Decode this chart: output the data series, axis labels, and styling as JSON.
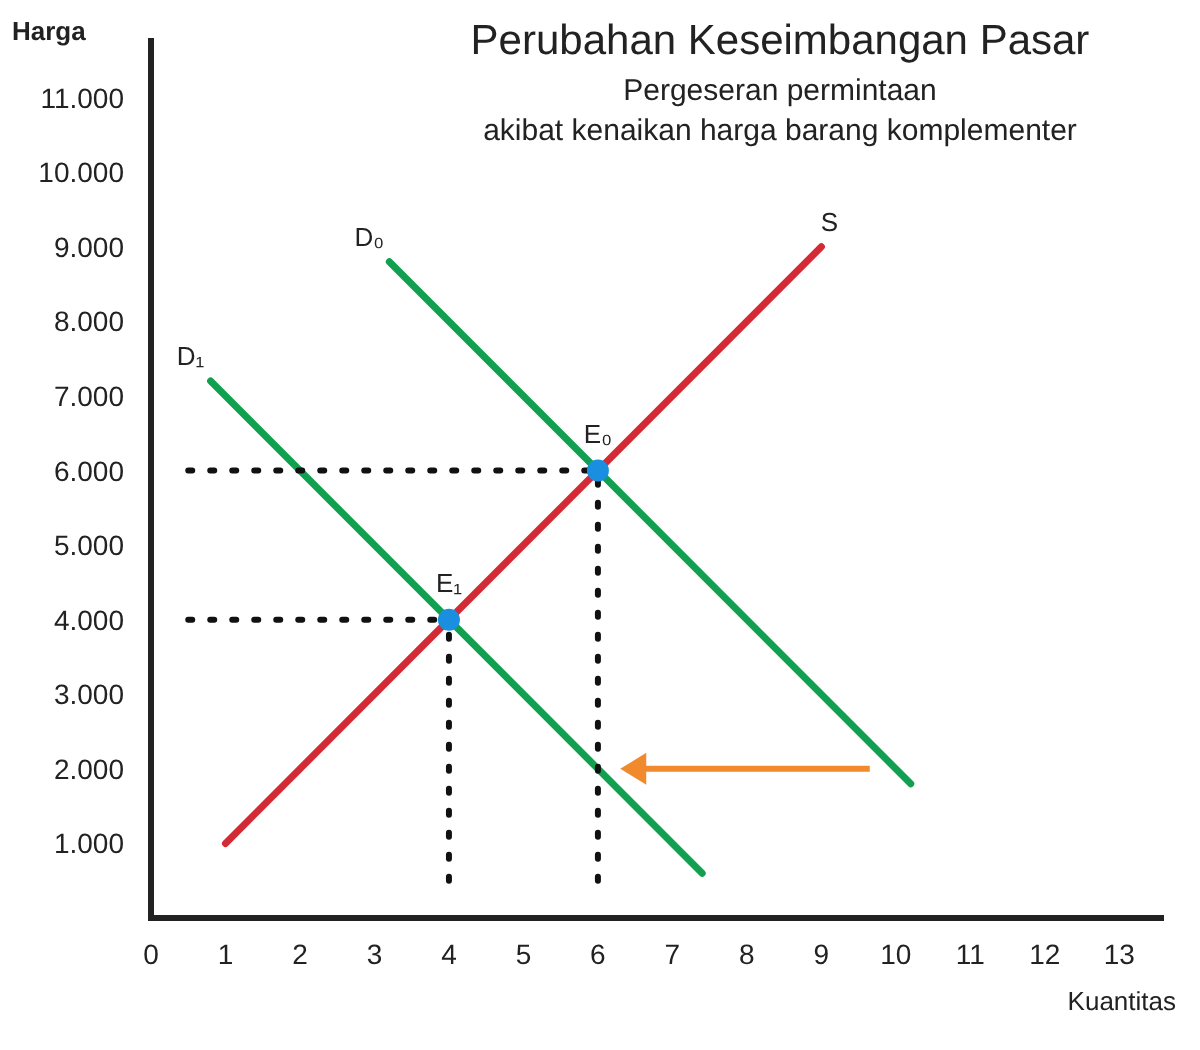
{
  "chart_data": {
    "type": "line",
    "title": "Perubahan Keseimbangan Pasar",
    "subtitle": "Pergeseran permintaan\nakibat kenaikan harga barang komplementer",
    "xlabel": "Kuantitas",
    "ylabel": "Harga",
    "xlim": [
      0,
      13.6
    ],
    "ylim": [
      0,
      11800
    ],
    "xticks": [
      0,
      1,
      2,
      3,
      4,
      5,
      6,
      7,
      8,
      9,
      10,
      11,
      12,
      13
    ],
    "yticks": [
      {
        "value": 1000,
        "label": "1.000"
      },
      {
        "value": 2000,
        "label": "2.000"
      },
      {
        "value": 3000,
        "label": "3.000"
      },
      {
        "value": 4000,
        "label": "4.000"
      },
      {
        "value": 5000,
        "label": "5.000"
      },
      {
        "value": 6000,
        "label": "6.000"
      },
      {
        "value": 7000,
        "label": "7.000"
      },
      {
        "value": 8000,
        "label": "8.000"
      },
      {
        "value": 9000,
        "label": "9.000"
      },
      {
        "value": 10000,
        "label": "10.000"
      },
      {
        "value": 11000,
        "label": "11.000"
      }
    ],
    "grid": false,
    "series": [
      {
        "name": "S",
        "color": "#d42a35",
        "x": [
          1,
          9
        ],
        "values": [
          1000,
          9000
        ]
      },
      {
        "name": "D₀",
        "color": "#11a050",
        "x": [
          3.2,
          10.2
        ],
        "values": [
          8800,
          1800
        ]
      },
      {
        "name": "D₁",
        "color": "#11a050",
        "x": [
          0.8,
          7.4
        ],
        "values": [
          7200,
          600
        ]
      },
      {
        "color": "#111111",
        "line_style": "dotted",
        "x": [
          0.5,
          6
        ],
        "values": [
          6000,
          6000
        ]
      },
      {
        "color": "#111111",
        "line_style": "dotted",
        "x": [
          6,
          6
        ],
        "values": [
          500,
          6000
        ]
      },
      {
        "color": "#111111",
        "line_style": "dotted",
        "x": [
          0.5,
          4
        ],
        "values": [
          4000,
          4000
        ]
      },
      {
        "color": "#111111",
        "line_style": "dotted",
        "x": [
          4,
          4
        ],
        "values": [
          500,
          4000
        ]
      },
      {
        "name": "E₀",
        "type": "scatter",
        "marker": "circle",
        "color": "#1a8fe0",
        "x": [
          6
        ],
        "values": [
          6000
        ]
      },
      {
        "name": "E₁",
        "type": "scatter",
        "marker": "circle",
        "color": "#1a8fe0",
        "x": [
          4
        ],
        "values": [
          4000
        ]
      }
    ]
  }
}
